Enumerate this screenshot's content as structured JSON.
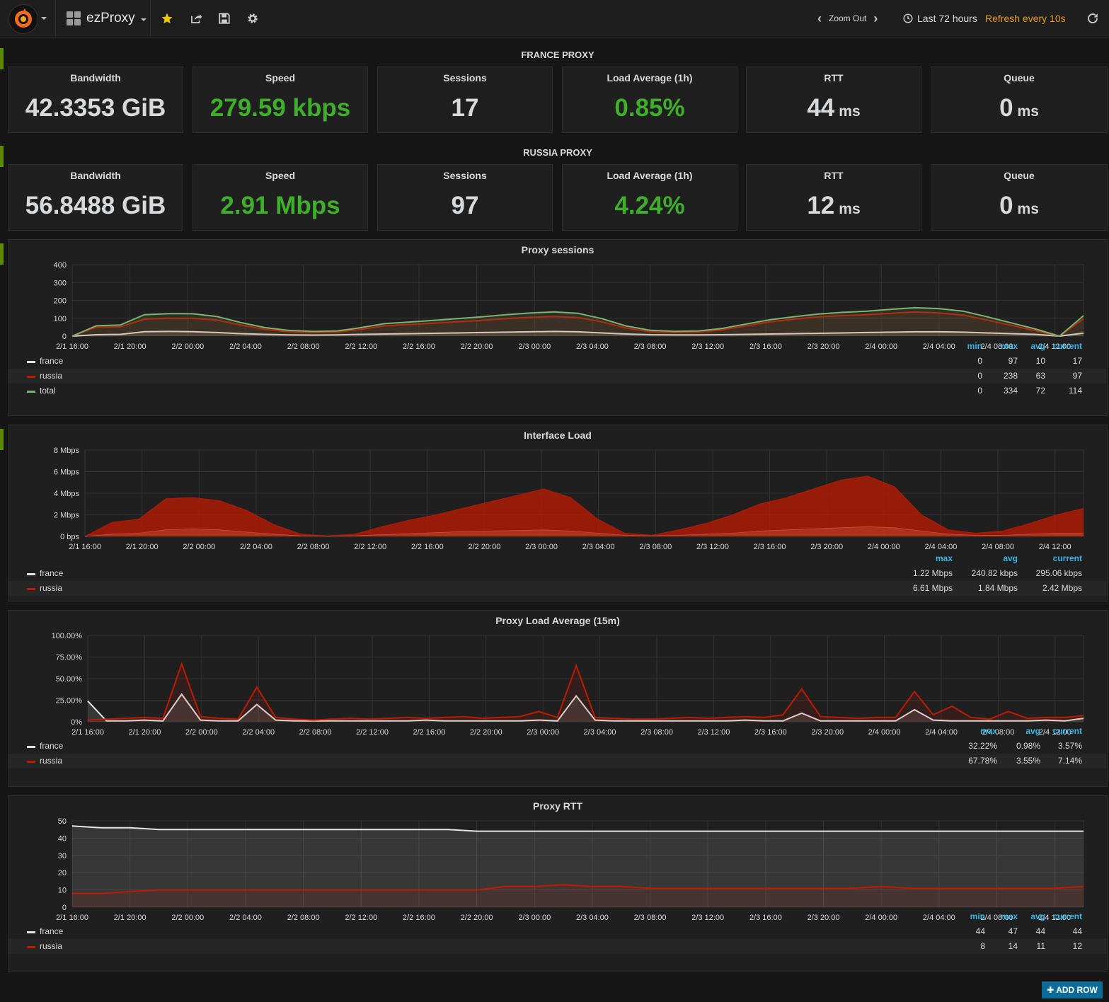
{
  "nav": {
    "dashboard_title": "ezProxy",
    "zoom_out": "Zoom Out",
    "time_range": "Last 72 hours",
    "refresh": "Refresh every 10s"
  },
  "rows": [
    {
      "title": "FRANCE PROXY",
      "stats": [
        {
          "label": "Bandwidth",
          "value": "42.3353 GiB",
          "unit": "",
          "color": "#d8d9da"
        },
        {
          "label": "Speed",
          "value": "279.59 kbps",
          "unit": "",
          "color": "#3fae2a"
        },
        {
          "label": "Sessions",
          "value": "17",
          "unit": "",
          "color": "#d8d9da"
        },
        {
          "label": "Load Average (1h)",
          "value": "0.85%",
          "unit": "",
          "color": "#3fae2a"
        },
        {
          "label": "RTT",
          "value": "44",
          "unit": "ms",
          "color": "#d8d9da"
        },
        {
          "label": "Queue",
          "value": "0",
          "unit": "ms",
          "color": "#d8d9da"
        }
      ]
    },
    {
      "title": "RUSSIA PROXY",
      "stats": [
        {
          "label": "Bandwidth",
          "value": "56.8488 GiB",
          "unit": "",
          "color": "#d8d9da"
        },
        {
          "label": "Speed",
          "value": "2.91 Mbps",
          "unit": "",
          "color": "#3fae2a"
        },
        {
          "label": "Sessions",
          "value": "97",
          "unit": "",
          "color": "#d8d9da"
        },
        {
          "label": "Load Average (1h)",
          "value": "4.24%",
          "unit": "",
          "color": "#3fae2a"
        },
        {
          "label": "RTT",
          "value": "12",
          "unit": "ms",
          "color": "#d8d9da"
        },
        {
          "label": "Queue",
          "value": "0",
          "unit": "ms",
          "color": "#d8d9da"
        }
      ]
    }
  ],
  "chart_data": [
    {
      "type": "line",
      "title": "Proxy sessions",
      "ylim": [
        0,
        400
      ],
      "yticks": [
        "0",
        "100",
        "200",
        "300",
        "400"
      ],
      "xticks": [
        "2/1 16:00",
        "2/1 20:00",
        "2/2 00:00",
        "2/2 04:00",
        "2/2 08:00",
        "2/2 12:00",
        "2/2 16:00",
        "2/2 20:00",
        "2/3 00:00",
        "2/3 04:00",
        "2/3 08:00",
        "2/3 12:00",
        "2/3 16:00",
        "2/3 20:00",
        "2/4 00:00",
        "2/4 04:00",
        "2/4 08:00",
        "2/4 12:00"
      ],
      "legend_columns": [
        "min",
        "max",
        "avg",
        "current"
      ],
      "series": [
        {
          "name": "france",
          "color": "#e5e5e5",
          "stats": [
            "0",
            "97",
            "10",
            "17"
          ],
          "values": [
            0,
            8,
            10,
            25,
            26,
            25,
            20,
            14,
            10,
            7,
            6,
            7,
            10,
            12,
            14,
            16,
            18,
            20,
            22,
            24,
            26,
            24,
            18,
            12,
            8,
            7,
            7,
            8,
            10,
            12,
            14,
            16,
            18,
            20,
            22,
            24,
            24,
            22,
            18,
            14,
            10,
            0,
            17
          ]
        },
        {
          "name": "russia",
          "color": "#bf1b00",
          "stats": [
            "0",
            "238",
            "63",
            "97"
          ],
          "values": [
            0,
            50,
            52,
            95,
            100,
            100,
            90,
            62,
            38,
            25,
            20,
            22,
            38,
            58,
            65,
            72,
            80,
            88,
            98,
            105,
            110,
            104,
            80,
            45,
            25,
            20,
            22,
            35,
            58,
            80,
            95,
            108,
            115,
            120,
            128,
            135,
            130,
            118,
            90,
            60,
            30,
            0,
            97
          ]
        },
        {
          "name": "total",
          "color": "#7eb26d",
          "stats": [
            "0",
            "334",
            "72",
            "114"
          ],
          "values": [
            0,
            58,
            62,
            120,
            126,
            125,
            110,
            76,
            48,
            32,
            26,
            29,
            48,
            70,
            79,
            88,
            98,
            108,
            120,
            129,
            136,
            128,
            98,
            57,
            33,
            27,
            29,
            43,
            68,
            92,
            109,
            124,
            133,
            140,
            150,
            159,
            154,
            140,
            108,
            74,
            40,
            0,
            114
          ]
        }
      ]
    },
    {
      "type": "area",
      "title": "Interface Load",
      "ylim": [
        0,
        8
      ],
      "ylabel_unit": "Mbps",
      "yticks": [
        "0 bps",
        "2 Mbps",
        "4 Mbps",
        "6 Mbps",
        "8 Mbps"
      ],
      "xticks": [
        "2/1 16:00",
        "2/1 20:00",
        "2/2 00:00",
        "2/2 04:00",
        "2/2 08:00",
        "2/2 12:00",
        "2/2 16:00",
        "2/2 20:00",
        "2/3 00:00",
        "2/3 04:00",
        "2/3 08:00",
        "2/3 12:00",
        "2/3 16:00",
        "2/3 20:00",
        "2/4 00:00",
        "2/4 04:00",
        "2/4 08:00",
        "2/4 12:00"
      ],
      "legend_columns": [
        "max",
        "avg",
        "current"
      ],
      "series": [
        {
          "name": "france",
          "color": "#e5e5e5",
          "stats": [
            "1.22 Mbps",
            "240.82 kbps",
            "295.06 kbps"
          ],
          "values": [
            0,
            0.2,
            0.3,
            0.6,
            0.7,
            0.6,
            0.4,
            0.2,
            0.05,
            0.02,
            0.05,
            0.15,
            0.25,
            0.35,
            0.45,
            0.5,
            0.55,
            0.6,
            0.5,
            0.3,
            0.1,
            0.05,
            0.1,
            0.2,
            0.3,
            0.5,
            0.6,
            0.7,
            0.8,
            0.9,
            0.8,
            0.5,
            0.2,
            0.1,
            0.1,
            0.2,
            0.3,
            0.3
          ]
        },
        {
          "name": "russia",
          "color": "#bf1b00",
          "stats": [
            "6.61 Mbps",
            "1.84 Mbps",
            "2.42 Mbps"
          ],
          "values": [
            0,
            1.3,
            1.6,
            3.5,
            3.6,
            3.3,
            2.4,
            1.1,
            0.2,
            0.05,
            0.2,
            0.9,
            1.5,
            2.0,
            2.6,
            3.2,
            3.8,
            4.4,
            3.6,
            1.6,
            0.3,
            0.1,
            0.6,
            1.2,
            2.0,
            3.0,
            3.6,
            4.4,
            5.2,
            5.6,
            4.6,
            2.0,
            0.6,
            0.3,
            0.5,
            1.2,
            2.0,
            2.6
          ]
        }
      ]
    },
    {
      "type": "line",
      "title": "Proxy Load Average (15m)",
      "ylim": [
        0,
        100
      ],
      "yticks": [
        "0%",
        "25.00%",
        "50.00%",
        "75.00%",
        "100.00%"
      ],
      "xticks": [
        "2/1 16:00",
        "2/1 20:00",
        "2/2 00:00",
        "2/2 04:00",
        "2/2 08:00",
        "2/2 12:00",
        "2/2 16:00",
        "2/2 20:00",
        "2/3 00:00",
        "2/3 04:00",
        "2/3 08:00",
        "2/3 12:00",
        "2/3 16:00",
        "2/3 20:00",
        "2/4 00:00",
        "2/4 04:00",
        "2/4 08:00",
        "2/4 12:00"
      ],
      "legend_columns": [
        "max",
        "avg",
        "current"
      ],
      "series": [
        {
          "name": "france",
          "color": "#e5e5e5",
          "stats": [
            "32.22%",
            "0.98%",
            "3.57%"
          ],
          "values": [
            24,
            1,
            1,
            2,
            1,
            32,
            2,
            1,
            1,
            20,
            2,
            1,
            1,
            1,
            1,
            1,
            1,
            1,
            2,
            1,
            1,
            1,
            1,
            1,
            2,
            1,
            30,
            2,
            1,
            1,
            1,
            1,
            1,
            1,
            1,
            2,
            1,
            1,
            10,
            1,
            1,
            1,
            1,
            1,
            14,
            2,
            1,
            1,
            1,
            1,
            1,
            2,
            1,
            4
          ]
        },
        {
          "name": "russia",
          "color": "#bf1b00",
          "stats": [
            "67.78%",
            "3.55%",
            "7.14%"
          ],
          "values": [
            2,
            3,
            4,
            5,
            4,
            67,
            6,
            4,
            3,
            40,
            5,
            3,
            2,
            3,
            4,
            3,
            4,
            5,
            4,
            5,
            6,
            4,
            5,
            6,
            12,
            5,
            65,
            5,
            4,
            3,
            3,
            4,
            5,
            4,
            5,
            6,
            5,
            8,
            38,
            6,
            5,
            4,
            5,
            5,
            35,
            8,
            18,
            5,
            3,
            12,
            4,
            5,
            5,
            7
          ]
        }
      ]
    },
    {
      "type": "line",
      "title": "Proxy RTT",
      "ylim": [
        0,
        50
      ],
      "yticks": [
        "0",
        "10",
        "20",
        "30",
        "40",
        "50"
      ],
      "xticks": [
        "2/1 16:00",
        "2/1 20:00",
        "2/2 00:00",
        "2/2 04:00",
        "2/2 08:00",
        "2/2 12:00",
        "2/2 16:00",
        "2/2 20:00",
        "2/3 00:00",
        "2/3 04:00",
        "2/3 08:00",
        "2/3 12:00",
        "2/3 16:00",
        "2/3 20:00",
        "2/4 00:00",
        "2/4 04:00",
        "2/4 08:00",
        "2/4 12:00"
      ],
      "legend_columns": [
        "min",
        "max",
        "avg",
        "current"
      ],
      "series": [
        {
          "name": "france",
          "color": "#e5e5e5",
          "stats": [
            "44",
            "47",
            "44",
            "44"
          ],
          "values": [
            47,
            46,
            46,
            45,
            45,
            45,
            45,
            45,
            45,
            45,
            45,
            45,
            45,
            45,
            44,
            44,
            44,
            44,
            44,
            44,
            44,
            44,
            44,
            44,
            44,
            44,
            44,
            44,
            44,
            44,
            44,
            44,
            44,
            44,
            44,
            44
          ]
        },
        {
          "name": "russia",
          "color": "#bf1b00",
          "stats": [
            "8",
            "14",
            "11",
            "12"
          ],
          "values": [
            8,
            8,
            9,
            10,
            10,
            10,
            10,
            10,
            10,
            10,
            10,
            10,
            10,
            10,
            10,
            12,
            12,
            13,
            12,
            12,
            11,
            11,
            11,
            11,
            11,
            11,
            11,
            11,
            12,
            11,
            11,
            11,
            11,
            11,
            11,
            12
          ]
        }
      ]
    }
  ],
  "add_row": "ADD ROW"
}
